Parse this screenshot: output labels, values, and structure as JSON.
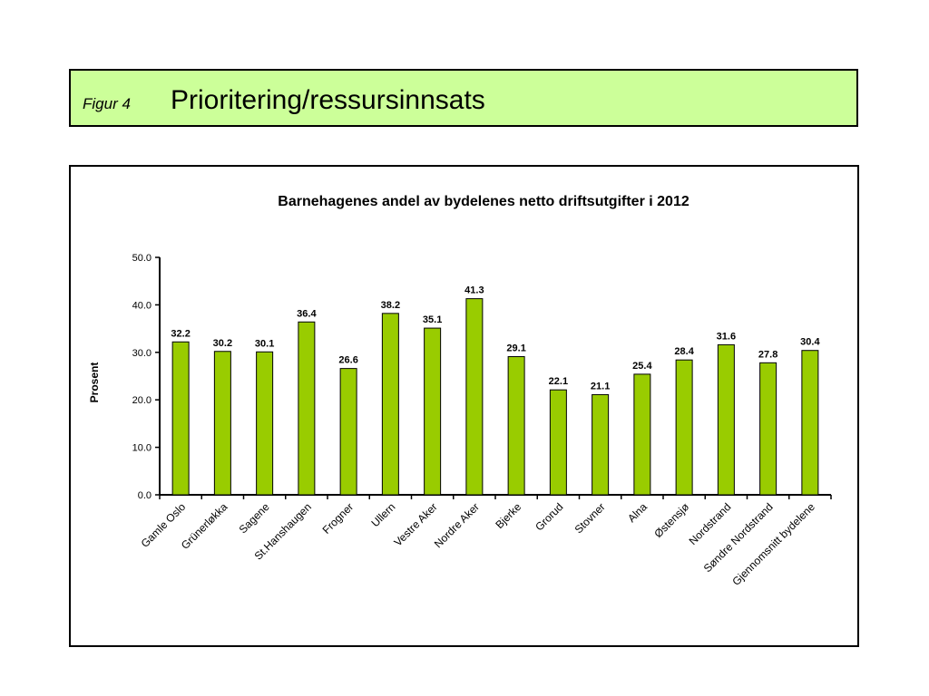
{
  "header": {
    "figure_label": "Figur 4",
    "title": "Prioritering/ressursinnsats"
  },
  "colors": {
    "header_bg": "#ccff99",
    "bar_fill": "#99cc00",
    "bar_stroke": "#000000"
  },
  "chart_data": {
    "type": "bar",
    "title": "Barnehagenes andel av bydelenes netto driftsutgifter i 2012",
    "xlabel": "",
    "ylabel": "Prosent",
    "ylim": [
      0,
      50
    ],
    "yticks": [
      "0.0",
      "10.0",
      "20.0",
      "30.0",
      "40.0",
      "50.0"
    ],
    "grid": false,
    "legend": "none",
    "categories": [
      "Gamle Oslo",
      "Grünerløkka",
      "Sagene",
      "St.Hanshaugen",
      "Frogner",
      "Ullern",
      "Vestre Aker",
      "Nordre Aker",
      "Bjerke",
      "Grorud",
      "Stovner",
      "Alna",
      "Østensjø",
      "Nordstrand",
      "Søndre Nordstrand",
      "Gjennomsnitt bydelene"
    ],
    "values": [
      32.2,
      30.2,
      30.1,
      36.4,
      26.6,
      38.2,
      35.1,
      41.3,
      29.1,
      22.1,
      21.1,
      25.4,
      28.4,
      31.6,
      27.8,
      30.4
    ],
    "data_labels": [
      "32.2",
      "30.2",
      "30.1",
      "36.4",
      "26.6",
      "38.2",
      "35.1",
      "41.3",
      "29.1",
      "22.1",
      "21.1",
      "25.4",
      "28.4",
      "31.6",
      "27.8",
      "30.4"
    ]
  }
}
